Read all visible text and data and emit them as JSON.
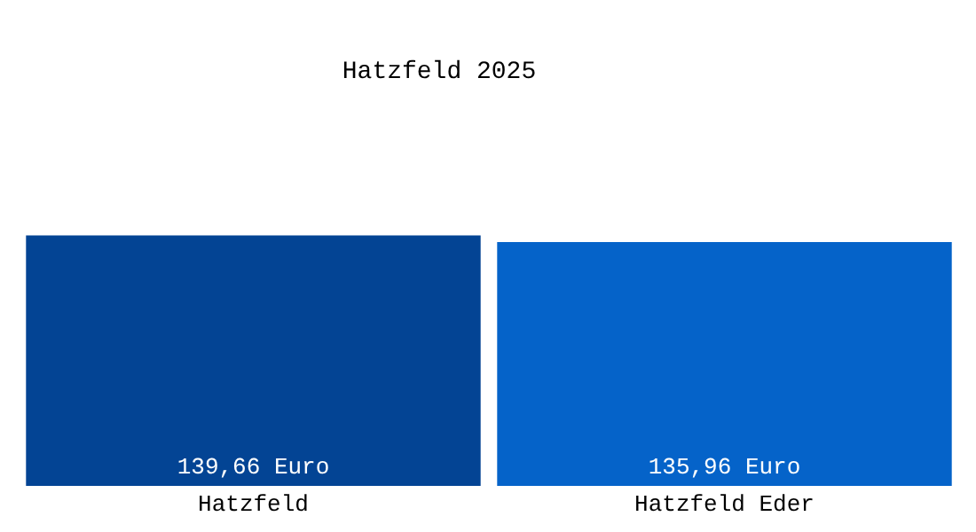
{
  "chart_data": {
    "type": "bar",
    "title": "Hatzfeld 2025",
    "categories": [
      "Hatzfeld",
      "Hatzfeld Eder"
    ],
    "values": [
      139.66,
      135.96
    ],
    "colors": [
      "#034494",
      "#0563c9"
    ],
    "value_labels": [
      "139,66 Euro",
      "135,96 Euro"
    ]
  }
}
